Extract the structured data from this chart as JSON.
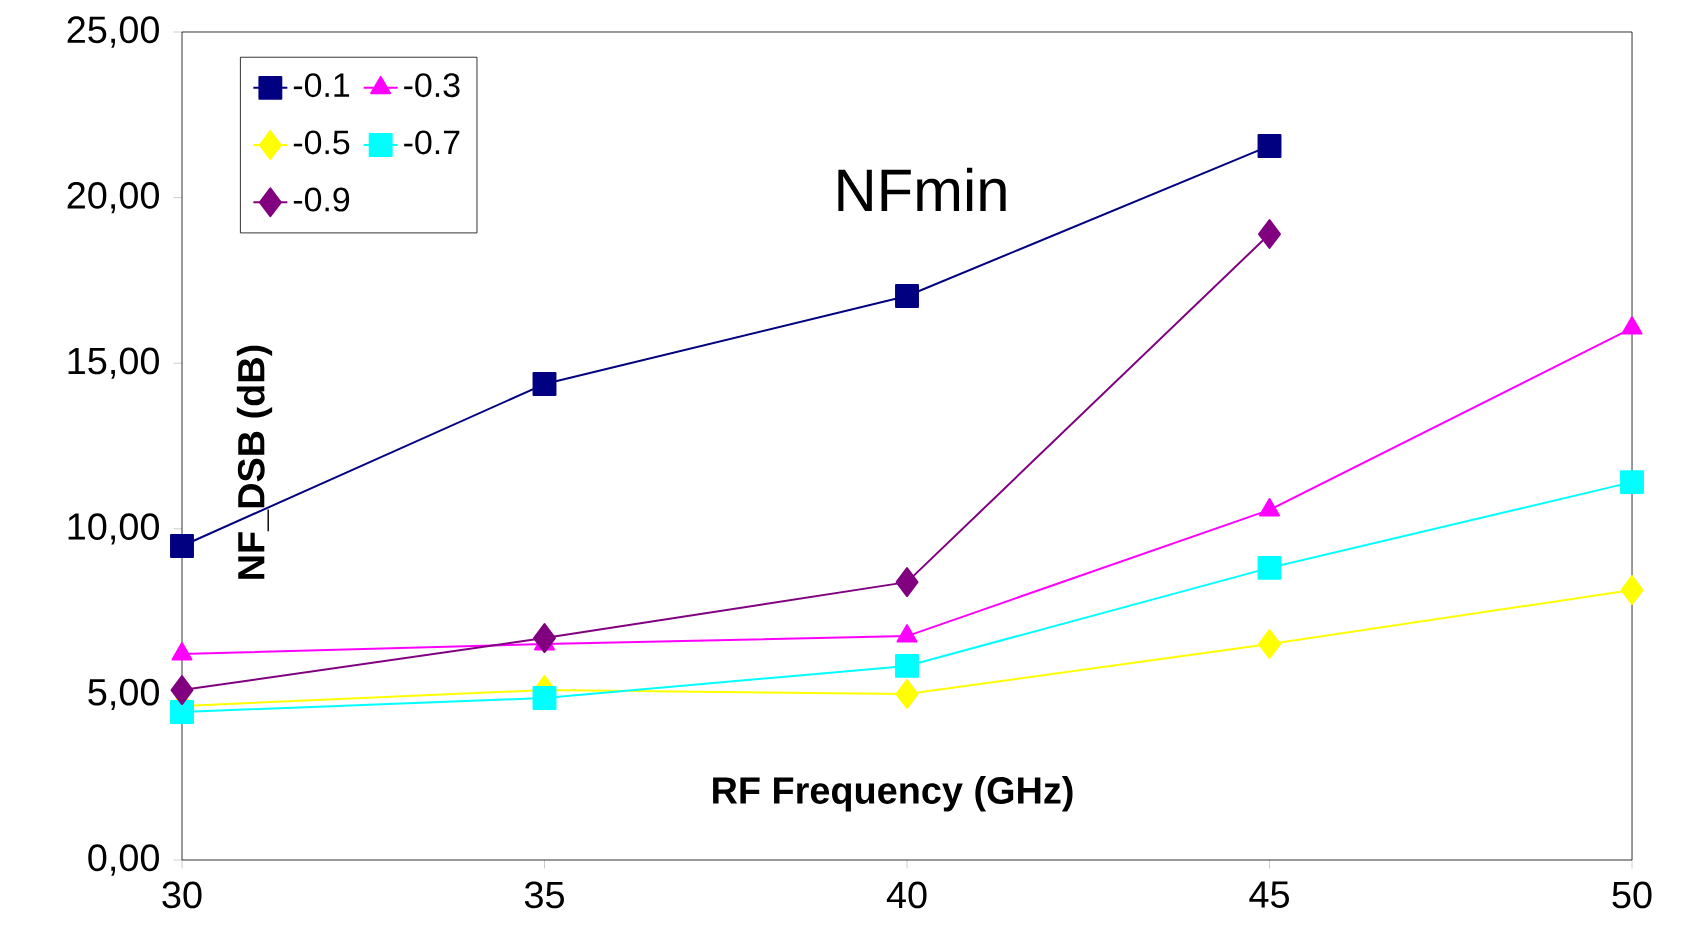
{
  "chart_data": {
    "type": "line",
    "xlabel": "RF Frequency (GHz)",
    "ylabel": "NF_DSB (dB)",
    "annotations": [
      "NFmin"
    ],
    "x": [
      30,
      35,
      40,
      45,
      50
    ],
    "series": [
      {
        "name": "-0.1",
        "color": "#000080",
        "marker": "square",
        "values": [
          9.48,
          14.37,
          17.03,
          21.56,
          null
        ]
      },
      {
        "name": "-0.3",
        "color": "#ff00ff",
        "marker": "triangle",
        "values": [
          6.22,
          6.52,
          6.76,
          10.57,
          16.06
        ]
      },
      {
        "name": "-0.5",
        "color": "#ffff00",
        "marker": "diamond",
        "values": [
          4.65,
          5.13,
          5.01,
          6.52,
          8.15
        ]
      },
      {
        "name": "-0.7",
        "color": "#00ffff",
        "marker": "square",
        "values": [
          4.47,
          4.89,
          5.86,
          8.82,
          11.41
        ]
      },
      {
        "name": "-0.9",
        "color": "#800080",
        "marker": "diamond",
        "values": [
          5.13,
          6.7,
          8.39,
          18.9,
          null
        ]
      }
    ],
    "xlim": [
      30,
      50
    ],
    "xticks": [
      30,
      35,
      40,
      45,
      50
    ],
    "ylim": [
      0,
      25
    ],
    "yticks": [
      {
        "value": 0,
        "label": "0,00"
      },
      {
        "value": 5,
        "label": "5,00"
      },
      {
        "value": 10,
        "label": "10,00"
      },
      {
        "value": 15,
        "label": "15,00"
      },
      {
        "value": 20,
        "label": "20,00"
      },
      {
        "value": 25,
        "label": "25,00"
      }
    ],
    "grid": false,
    "legend": "top left",
    "line_style": "solid"
  }
}
